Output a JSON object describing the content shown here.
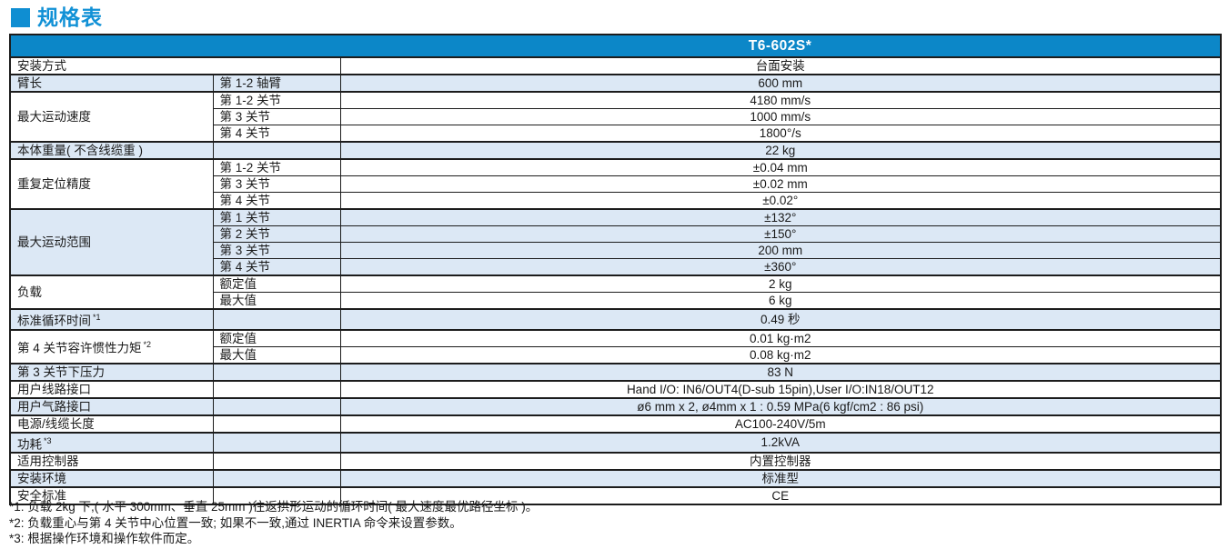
{
  "page": {
    "title": "规格表"
  },
  "colors": {
    "accent_blue": "#0f8ed2",
    "header_blue": "#0c87c8",
    "row_shade_blue": "#dce8f5",
    "border": "#1c1c1c"
  },
  "table": {
    "model_header": "T6-602S*",
    "groups": [
      {
        "label": "安装方式",
        "note": "",
        "merged": true,
        "shade": false,
        "rows": [
          {
            "sub": "",
            "value": "台面安装"
          }
        ]
      },
      {
        "label": "臂长",
        "note": "",
        "merged": false,
        "shade": true,
        "rows": [
          {
            "sub": "第 1-2 轴臂",
            "value": "600 mm"
          }
        ]
      },
      {
        "label": "最大运动速度",
        "note": "",
        "merged": false,
        "shade": false,
        "rows": [
          {
            "sub": "第 1-2 关节",
            "value": "4180 mm/s"
          },
          {
            "sub": "第 3 关节",
            "value": "1000 mm/s"
          },
          {
            "sub": "第 4 关节",
            "value": "1800°/s"
          }
        ]
      },
      {
        "label": "本体重量( 不含线缆重 )",
        "note": "",
        "merged": false,
        "shade": true,
        "rows": [
          {
            "sub": "",
            "value": "22 kg"
          }
        ]
      },
      {
        "label": "重复定位精度",
        "note": "",
        "merged": false,
        "shade": false,
        "rows": [
          {
            "sub": "第 1-2 关节",
            "value": "±0.04 mm"
          },
          {
            "sub": "第 3 关节",
            "value": "±0.02 mm"
          },
          {
            "sub": "第 4 关节",
            "value": "±0.02°"
          }
        ]
      },
      {
        "label": "最大运动范围",
        "note": "",
        "merged": false,
        "shade": true,
        "rows": [
          {
            "sub": "第 1 关节",
            "value": "±132°"
          },
          {
            "sub": "第 2 关节",
            "value": "±150°"
          },
          {
            "sub": "第 3 关节",
            "value": "200 mm"
          },
          {
            "sub": "第 4 关节",
            "value": "±360°"
          }
        ]
      },
      {
        "label": "负载",
        "note": "",
        "merged": false,
        "shade": false,
        "rows": [
          {
            "sub": "额定值",
            "value": "2 kg"
          },
          {
            "sub": "最大值",
            "value": "6 kg"
          }
        ]
      },
      {
        "label": "标准循环时间",
        "note": "*1",
        "merged": false,
        "shade": true,
        "rows": [
          {
            "sub": "",
            "value": "0.49 秒"
          }
        ]
      },
      {
        "label": "第 4 关节容许惯性力矩",
        "note": "*2",
        "merged": false,
        "shade": false,
        "rows": [
          {
            "sub": "额定值",
            "value": "0.01 kg·m2"
          },
          {
            "sub": "最大值",
            "value": "0.08 kg·m2"
          }
        ]
      },
      {
        "label": "第 3 关节下压力",
        "note": "",
        "merged": false,
        "shade": true,
        "rows": [
          {
            "sub": "",
            "value": "83 N"
          }
        ]
      },
      {
        "label": "用户线路接口",
        "note": "",
        "merged": false,
        "shade": false,
        "rows": [
          {
            "sub": "",
            "value": "Hand I/O: IN6/OUT4(D-sub 15pin),User I/O:IN18/OUT12"
          }
        ]
      },
      {
        "label": "用户气路接口",
        "note": "",
        "merged": false,
        "shade": true,
        "rows": [
          {
            "sub": "",
            "value": "ø6 mm x 2, ø4mm x 1 : 0.59 MPa(6 kgf/cm2 : 86 psi)"
          }
        ]
      },
      {
        "label": "电源/线缆长度",
        "note": "",
        "merged": false,
        "shade": false,
        "rows": [
          {
            "sub": "",
            "value": "AC100-240V/5m"
          }
        ]
      },
      {
        "label": "功耗",
        "note": "*3",
        "merged": false,
        "shade": true,
        "rows": [
          {
            "sub": "",
            "value": "1.2kVA"
          }
        ]
      },
      {
        "label": "适用控制器",
        "note": "",
        "merged": false,
        "shade": false,
        "rows": [
          {
            "sub": "",
            "value": "内置控制器"
          }
        ]
      },
      {
        "label": "安装环境",
        "note": "",
        "merged": false,
        "shade": true,
        "rows": [
          {
            "sub": "",
            "value": "标准型"
          }
        ]
      },
      {
        "label": "安全标准",
        "note": "",
        "merged": false,
        "shade": false,
        "rows": [
          {
            "sub": "",
            "value": "CE"
          }
        ]
      }
    ]
  },
  "footnotes": [
    "*1: 负载 2kg 下,( 水平 300mm、垂直 25mm )往返拱形运动的循环时间( 最大速度最优路径坐标 )。",
    "*2: 负载重心与第 4 关节中心位置一致; 如果不一致,通过 INERTIA 命令来设置参数。",
    "*3: 根据操作环境和操作软件而定。"
  ]
}
